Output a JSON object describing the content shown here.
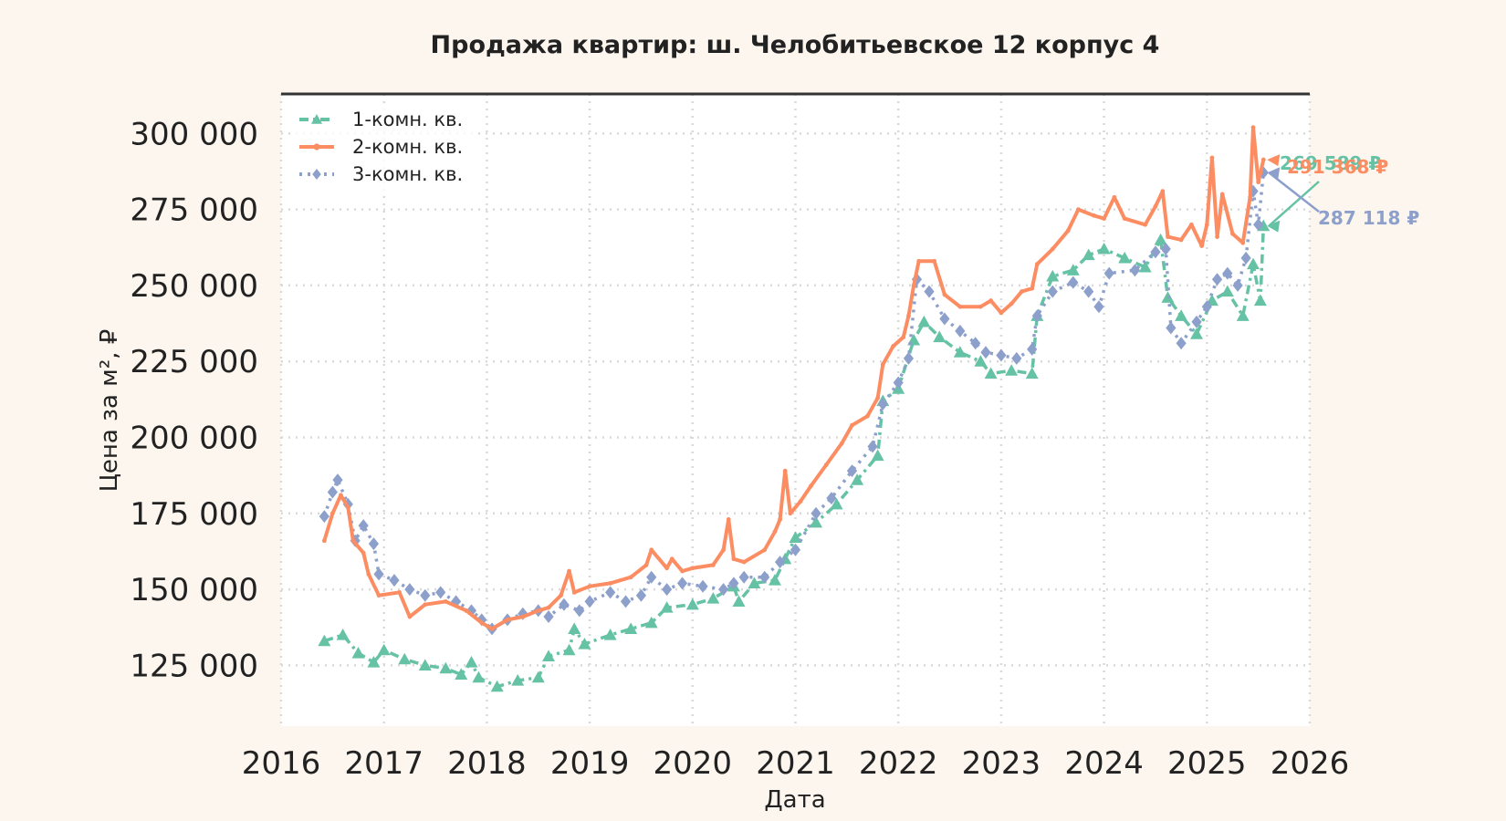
{
  "chart_data": {
    "type": "line",
    "title": "Продажа квартир: ш. Челобитьевское 12 корпус 4",
    "xlabel": "Дата",
    "ylabel": "Цена за м², ₽",
    "xlim": [
      2016.0,
      2026.0
    ],
    "ylim": [
      105000,
      313000
    ],
    "x_ticks": [
      "2016",
      "2017",
      "2018",
      "2019",
      "2020",
      "2021",
      "2022",
      "2023",
      "2024",
      "2025",
      "2026"
    ],
    "y_ticks": [
      "125 000",
      "150 000",
      "175 000",
      "200 000",
      "225 000",
      "250 000",
      "275 000",
      "300 000"
    ],
    "grid": true,
    "legend_position": "top-left",
    "series": [
      {
        "name": "1-комн. кв.",
        "color": "#66c2a5",
        "style": "dashdot",
        "marker": "triangle",
        "end_label": "269 589 ₽",
        "points": [
          [
            2016.42,
            133000
          ],
          [
            2016.6,
            135000
          ],
          [
            2016.75,
            129000
          ],
          [
            2016.9,
            126000
          ],
          [
            2017.0,
            130000
          ],
          [
            2017.2,
            127000
          ],
          [
            2017.4,
            125000
          ],
          [
            2017.6,
            124000
          ],
          [
            2017.75,
            122000
          ],
          [
            2017.85,
            126000
          ],
          [
            2017.92,
            121000
          ],
          [
            2018.1,
            118000
          ],
          [
            2018.3,
            120000
          ],
          [
            2018.5,
            121000
          ],
          [
            2018.6,
            128000
          ],
          [
            2018.8,
            130000
          ],
          [
            2018.85,
            137000
          ],
          [
            2018.95,
            132000
          ],
          [
            2019.2,
            135000
          ],
          [
            2019.4,
            137000
          ],
          [
            2019.6,
            139000
          ],
          [
            2019.75,
            144000
          ],
          [
            2020.0,
            145000
          ],
          [
            2020.2,
            147000
          ],
          [
            2020.4,
            151000
          ],
          [
            2020.45,
            146000
          ],
          [
            2020.6,
            152000
          ],
          [
            2020.8,
            153000
          ],
          [
            2020.9,
            160000
          ],
          [
            2021.0,
            167000
          ],
          [
            2021.2,
            172000
          ],
          [
            2021.4,
            178000
          ],
          [
            2021.6,
            186000
          ],
          [
            2021.8,
            194000
          ],
          [
            2021.85,
            212000
          ],
          [
            2022.0,
            216000
          ],
          [
            2022.15,
            232000
          ],
          [
            2022.25,
            238000
          ],
          [
            2022.4,
            233000
          ],
          [
            2022.6,
            228000
          ],
          [
            2022.8,
            225000
          ],
          [
            2022.9,
            221000
          ],
          [
            2023.1,
            222000
          ],
          [
            2023.3,
            221000
          ],
          [
            2023.35,
            240000
          ],
          [
            2023.5,
            253000
          ],
          [
            2023.7,
            255000
          ],
          [
            2023.85,
            260000
          ],
          [
            2024.0,
            262000
          ],
          [
            2024.2,
            259000
          ],
          [
            2024.4,
            256000
          ],
          [
            2024.55,
            265000
          ],
          [
            2024.62,
            246000
          ],
          [
            2024.75,
            240000
          ],
          [
            2024.9,
            234000
          ],
          [
            2025.05,
            245000
          ],
          [
            2025.2,
            248000
          ],
          [
            2025.35,
            240000
          ],
          [
            2025.45,
            257000
          ],
          [
            2025.52,
            245000
          ],
          [
            2025.55,
            269589
          ]
        ]
      },
      {
        "name": "2-комн. кв.",
        "color": "#fc8d62",
        "style": "solid",
        "marker": "dot",
        "end_label": "291 368 ₽",
        "points": [
          [
            2016.42,
            166000
          ],
          [
            2016.5,
            175000
          ],
          [
            2016.58,
            181000
          ],
          [
            2016.65,
            177000
          ],
          [
            2016.7,
            166000
          ],
          [
            2016.8,
            162000
          ],
          [
            2016.85,
            155000
          ],
          [
            2016.95,
            148000
          ],
          [
            2017.15,
            149000
          ],
          [
            2017.25,
            141000
          ],
          [
            2017.4,
            145000
          ],
          [
            2017.6,
            146000
          ],
          [
            2017.8,
            143000
          ],
          [
            2017.95,
            139000
          ],
          [
            2018.05,
            137000
          ],
          [
            2018.2,
            140000
          ],
          [
            2018.35,
            141000
          ],
          [
            2018.5,
            143000
          ],
          [
            2018.6,
            144000
          ],
          [
            2018.72,
            148000
          ],
          [
            2018.8,
            156000
          ],
          [
            2018.85,
            149000
          ],
          [
            2019.0,
            151000
          ],
          [
            2019.2,
            152000
          ],
          [
            2019.4,
            154000
          ],
          [
            2019.55,
            158000
          ],
          [
            2019.6,
            163000
          ],
          [
            2019.75,
            157000
          ],
          [
            2019.8,
            160000
          ],
          [
            2019.9,
            156000
          ],
          [
            2020.0,
            157000
          ],
          [
            2020.2,
            158000
          ],
          [
            2020.3,
            163000
          ],
          [
            2020.35,
            173000
          ],
          [
            2020.4,
            160000
          ],
          [
            2020.5,
            159000
          ],
          [
            2020.7,
            163000
          ],
          [
            2020.8,
            169000
          ],
          [
            2020.85,
            173000
          ],
          [
            2020.9,
            189000
          ],
          [
            2020.95,
            175000
          ],
          [
            2021.05,
            179000
          ],
          [
            2021.15,
            184000
          ],
          [
            2021.3,
            191000
          ],
          [
            2021.45,
            198000
          ],
          [
            2021.55,
            204000
          ],
          [
            2021.7,
            207000
          ],
          [
            2021.8,
            213000
          ],
          [
            2021.85,
            224000
          ],
          [
            2021.95,
            230000
          ],
          [
            2022.05,
            233000
          ],
          [
            2022.1,
            240000
          ],
          [
            2022.15,
            250000
          ],
          [
            2022.2,
            258000
          ],
          [
            2022.35,
            258000
          ],
          [
            2022.45,
            247000
          ],
          [
            2022.6,
            243000
          ],
          [
            2022.8,
            243000
          ],
          [
            2022.9,
            245000
          ],
          [
            2023.0,
            241000
          ],
          [
            2023.1,
            244000
          ],
          [
            2023.2,
            248000
          ],
          [
            2023.3,
            249000
          ],
          [
            2023.35,
            257000
          ],
          [
            2023.5,
            262000
          ],
          [
            2023.65,
            268000
          ],
          [
            2023.75,
            275000
          ],
          [
            2023.9,
            273000
          ],
          [
            2024.0,
            272000
          ],
          [
            2024.1,
            279000
          ],
          [
            2024.2,
            272000
          ],
          [
            2024.4,
            270000
          ],
          [
            2024.5,
            276000
          ],
          [
            2024.57,
            281000
          ],
          [
            2024.62,
            266000
          ],
          [
            2024.75,
            265000
          ],
          [
            2024.85,
            270000
          ],
          [
            2024.95,
            263000
          ],
          [
            2025.0,
            270000
          ],
          [
            2025.05,
            292000
          ],
          [
            2025.1,
            266000
          ],
          [
            2025.15,
            280000
          ],
          [
            2025.25,
            267000
          ],
          [
            2025.35,
            264000
          ],
          [
            2025.42,
            279000
          ],
          [
            2025.45,
            302000
          ],
          [
            2025.5,
            284000
          ],
          [
            2025.55,
            291368
          ]
        ]
      },
      {
        "name": "3-комн. кв.",
        "color": "#8da0cb",
        "style": "dotted",
        "marker": "diamond",
        "end_label": "287 118 ₽",
        "points": [
          [
            2016.42,
            174000
          ],
          [
            2016.5,
            182000
          ],
          [
            2016.55,
            186000
          ],
          [
            2016.65,
            178000
          ],
          [
            2016.72,
            166000
          ],
          [
            2016.8,
            171000
          ],
          [
            2016.9,
            165000
          ],
          [
            2016.95,
            155000
          ],
          [
            2017.1,
            153000
          ],
          [
            2017.25,
            150000
          ],
          [
            2017.4,
            148000
          ],
          [
            2017.55,
            149000
          ],
          [
            2017.7,
            146000
          ],
          [
            2017.85,
            143000
          ],
          [
            2017.95,
            140000
          ],
          [
            2018.05,
            137000
          ],
          [
            2018.2,
            140000
          ],
          [
            2018.35,
            142000
          ],
          [
            2018.5,
            143000
          ],
          [
            2018.6,
            141000
          ],
          [
            2018.75,
            145000
          ],
          [
            2018.9,
            143000
          ],
          [
            2019.0,
            146000
          ],
          [
            2019.2,
            149000
          ],
          [
            2019.35,
            146000
          ],
          [
            2019.5,
            148000
          ],
          [
            2019.6,
            154000
          ],
          [
            2019.75,
            150000
          ],
          [
            2019.9,
            152000
          ],
          [
            2020.1,
            151000
          ],
          [
            2020.3,
            150000
          ],
          [
            2020.4,
            152000
          ],
          [
            2020.5,
            154000
          ],
          [
            2020.7,
            154000
          ],
          [
            2020.85,
            159000
          ],
          [
            2021.0,
            163000
          ],
          [
            2021.2,
            175000
          ],
          [
            2021.35,
            180000
          ],
          [
            2021.55,
            189000
          ],
          [
            2021.75,
            197000
          ],
          [
            2021.85,
            211000
          ],
          [
            2022.0,
            218000
          ],
          [
            2022.1,
            226000
          ],
          [
            2022.18,
            252000
          ],
          [
            2022.3,
            248000
          ],
          [
            2022.45,
            239000
          ],
          [
            2022.6,
            235000
          ],
          [
            2022.75,
            231000
          ],
          [
            2022.85,
            228000
          ],
          [
            2023.0,
            227000
          ],
          [
            2023.15,
            226000
          ],
          [
            2023.3,
            229000
          ],
          [
            2023.35,
            240000
          ],
          [
            2023.5,
            248000
          ],
          [
            2023.7,
            251000
          ],
          [
            2023.85,
            248000
          ],
          [
            2023.95,
            243000
          ],
          [
            2024.05,
            254000
          ],
          [
            2024.3,
            255000
          ],
          [
            2024.5,
            261000
          ],
          [
            2024.6,
            262000
          ],
          [
            2024.65,
            236000
          ],
          [
            2024.75,
            231000
          ],
          [
            2024.9,
            238000
          ],
          [
            2025.0,
            243000
          ],
          [
            2025.1,
            252000
          ],
          [
            2025.2,
            254000
          ],
          [
            2025.3,
            250000
          ],
          [
            2025.38,
            259000
          ],
          [
            2025.45,
            281000
          ],
          [
            2025.5,
            270000
          ],
          [
            2025.55,
            287118
          ]
        ]
      }
    ]
  }
}
